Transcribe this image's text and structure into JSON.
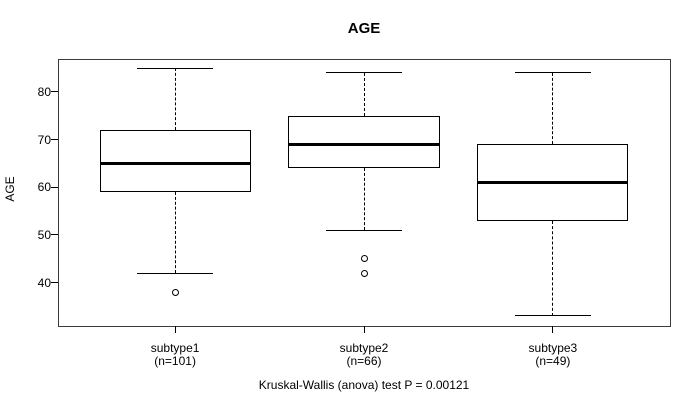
{
  "chart_data": {
    "type": "boxplot",
    "title": "AGE",
    "xlabel": "",
    "ylabel": "AGE",
    "caption": "Kruskal-Wallis (anova) test P = 0.00121",
    "ylim": [
      30.9,
      86.9
    ],
    "yticks": [
      40,
      50,
      60,
      70,
      80
    ],
    "grid": false,
    "legend": "none",
    "colors": {
      "line": "#000000",
      "frame": "#3c3c3c",
      "background": "#ffffff"
    },
    "groups": [
      {
        "label": "subtype1",
        "sublabel": "(n=101)",
        "n": 101,
        "whisker_low": 42,
        "q1": 59,
        "median": 65,
        "q3": 72,
        "whisker_high": 85,
        "outliers": [
          38
        ]
      },
      {
        "label": "subtype2",
        "sublabel": "(n=66)",
        "n": 66,
        "whisker_low": 51,
        "q1": 64,
        "median": 69,
        "q3": 75,
        "whisker_high": 84,
        "outliers": [
          45,
          42
        ]
      },
      {
        "label": "subtype3",
        "sublabel": "(n=49)",
        "n": 49,
        "whisker_low": 33,
        "q1": 53,
        "median": 61,
        "q3": 69,
        "whisker_high": 84,
        "outliers": []
      }
    ]
  }
}
